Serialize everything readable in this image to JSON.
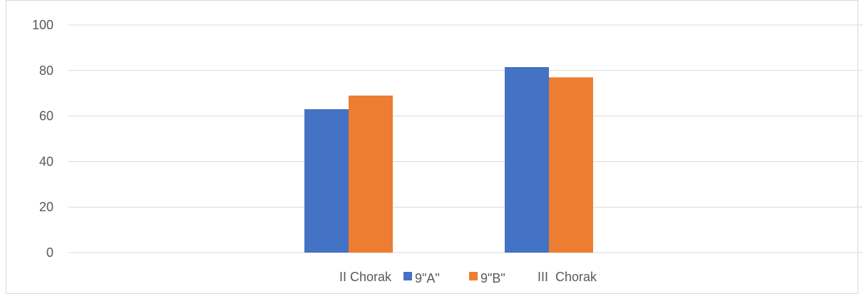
{
  "chart_data": {
    "type": "bar",
    "categories": [
      "II Chorak",
      "III  Chorak"
    ],
    "series": [
      {
        "name": "9\"A\"",
        "values": [
          63,
          81.5
        ],
        "color": "#4472c4"
      },
      {
        "name": "9\"B\"",
        "values": [
          69,
          77
        ],
        "color": "#ed7d31"
      }
    ],
    "ylim": [
      0,
      100
    ],
    "yticks": [
      0,
      20,
      40,
      60,
      80,
      100
    ],
    "grid": true,
    "legend": "bottom",
    "title": "",
    "xlabel": "",
    "ylabel": ""
  }
}
